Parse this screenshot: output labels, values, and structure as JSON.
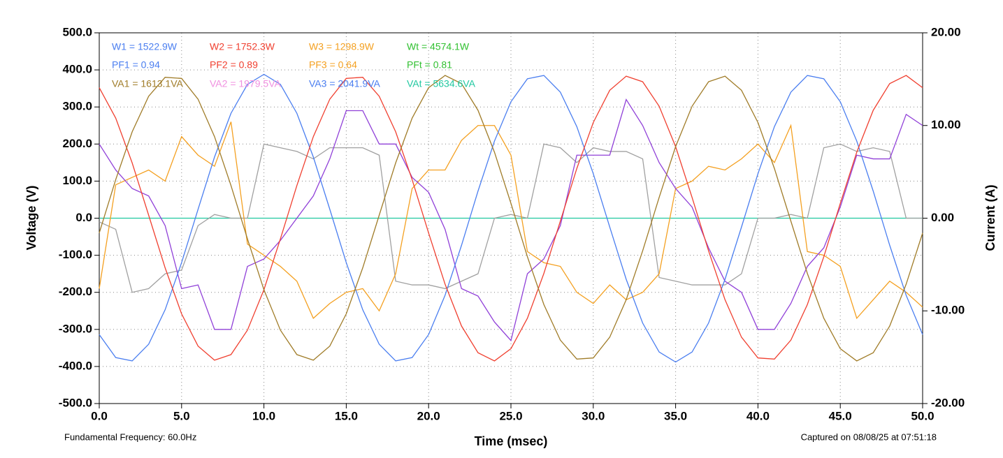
{
  "chart_data": {
    "type": "line",
    "x": [
      0,
      1,
      2,
      3,
      4,
      5,
      6,
      7,
      8,
      9,
      10,
      11,
      12,
      13,
      14,
      15,
      16,
      17,
      18,
      19,
      20,
      21,
      22,
      23,
      24,
      25,
      26,
      27,
      28,
      29,
      30,
      31,
      32,
      33,
      34,
      35,
      36,
      37,
      38,
      39,
      40,
      41,
      42,
      43,
      44,
      45,
      46,
      47,
      48,
      49,
      50
    ],
    "xlim": [
      0,
      50
    ],
    "xticks": [
      {
        "value": 0,
        "label": "0.0"
      },
      {
        "value": 5,
        "label": "5.0"
      },
      {
        "value": 10,
        "label": "10.0"
      },
      {
        "value": 15,
        "label": "15.0"
      },
      {
        "value": 20,
        "label": "20.0"
      },
      {
        "value": 25,
        "label": "25.0"
      },
      {
        "value": 30,
        "label": "30.0"
      },
      {
        "value": 35,
        "label": "35.0"
      },
      {
        "value": 40,
        "label": "40.0"
      },
      {
        "value": 45,
        "label": "45.0"
      },
      {
        "value": 50,
        "label": "50.0"
      }
    ],
    "ylim": [
      -500,
      500
    ],
    "yticks": [
      {
        "value": -500,
        "label": "-500.0"
      },
      {
        "value": -400,
        "label": "-400.0"
      },
      {
        "value": -300,
        "label": "-300.0"
      },
      {
        "value": -200,
        "label": "-200.0"
      },
      {
        "value": -100,
        "label": "-100.0"
      },
      {
        "value": 0,
        "label": "0.0"
      },
      {
        "value": 100,
        "label": "100.0"
      },
      {
        "value": 200,
        "label": "200.0"
      },
      {
        "value": 300,
        "label": "300.0"
      },
      {
        "value": 400,
        "label": "400.0"
      },
      {
        "value": 500,
        "label": "500.0"
      }
    ],
    "y2lim": [
      -20,
      20
    ],
    "y2ticks": [
      {
        "value": -20,
        "label": "-20.00"
      },
      {
        "value": -10,
        "label": "-10.00"
      },
      {
        "value": 0,
        "label": "0.00"
      },
      {
        "value": 10,
        "label": "10.00"
      },
      {
        "value": 20,
        "label": "20.00"
      }
    ],
    "xlabel": "Time (msec)",
    "ylabel": "Voltage (V)",
    "y2label": "Current (A)",
    "grid": true,
    "series": [
      {
        "color": "#20c8a0",
        "axis": "y2",
        "values": [
          0,
          0,
          0,
          0,
          0,
          0,
          0,
          0,
          0,
          0,
          0,
          0,
          0,
          0,
          0,
          0,
          0,
          0,
          0,
          0,
          0,
          0,
          0,
          0,
          0,
          0,
          0,
          0,
          0,
          0,
          0,
          0,
          0,
          0,
          0,
          0,
          0,
          0,
          0,
          0,
          0,
          0,
          0,
          0,
          0,
          0,
          0,
          0,
          0,
          0,
          0
        ]
      },
      {
        "color": "#a0a0a0",
        "axis": "y2",
        "values": [
          -0.4,
          -1.2,
          -8,
          -7.6,
          -6,
          -5.6,
          -0.8,
          0.4,
          0,
          0,
          8,
          7.6,
          7.2,
          6.4,
          7.6,
          7.6,
          7.6,
          6.8,
          -6.8,
          -7.2,
          -7.2,
          -7.6,
          -6.8,
          -6,
          0,
          0.4,
          0,
          8,
          7.6,
          6,
          7.6,
          7.2,
          7.2,
          6.4,
          -6.4,
          -6.8,
          -7.2,
          -7.2,
          -7.2,
          -6,
          0,
          0,
          0.4,
          0,
          7.6,
          8,
          7.2,
          7.6,
          7.2,
          0,
          0
        ]
      },
      {
        "color": "#f4a020",
        "axis": "y2",
        "values": [
          -7.6,
          3.6,
          4.4,
          5.2,
          4,
          8.8,
          6.8,
          5.6,
          10.4,
          -2.8,
          -4,
          -5.2,
          -6.8,
          -10.8,
          -9.2,
          -8,
          -7.6,
          -10,
          -6,
          3.2,
          5.2,
          5.2,
          8.4,
          10,
          10,
          6.8,
          -3.6,
          -4.8,
          -5.2,
          -8,
          -9.2,
          -7.2,
          -8.8,
          -8,
          -6,
          3.2,
          4,
          5.6,
          5.2,
          6.4,
          8,
          6,
          10,
          -3.6,
          -4,
          -5.2,
          -10.8,
          -8.8,
          -6.8,
          -8,
          -9.6
        ]
      },
      {
        "color": "#9040d8",
        "axis": "y2",
        "values": [
          8,
          5.2,
          3.2,
          2.4,
          -0.8,
          -7.6,
          -7.2,
          -12,
          -12,
          -5.2,
          -4.4,
          -2.4,
          0,
          2.4,
          6.4,
          11.6,
          11.6,
          8,
          8,
          4.4,
          2.8,
          -1.2,
          -7.6,
          -8.4,
          -11.2,
          -13.2,
          -6,
          -4.4,
          -0.8,
          6.8,
          6.8,
          6.8,
          12.8,
          10,
          6,
          3.2,
          1.2,
          -3.2,
          -6.8,
          -8,
          -12,
          -12,
          -9.2,
          -5.2,
          -3.2,
          1.2,
          6.8,
          6.4,
          6.4,
          11.2,
          10
        ]
      },
      {
        "color": "#4a7ef0",
        "values": [
          -314,
          -376,
          -385,
          -340,
          -247,
          -120,
          24,
          165,
          283,
          361,
          388,
          361,
          283,
          165,
          24,
          -120,
          -247,
          -340,
          -385,
          -376,
          -314,
          -208,
          -73,
          73,
          208,
          314,
          376,
          385,
          340,
          247,
          120,
          -24,
          -165,
          -283,
          -361,
          -388,
          -361,
          -283,
          -165,
          -24,
          120,
          247,
          340,
          385,
          376,
          314,
          208,
          73,
          -73,
          -208,
          -314
        ]
      },
      {
        "color": "#f04030",
        "values": [
          352,
          270,
          149,
          8,
          -134,
          -258,
          -345,
          -383,
          -368,
          -302,
          -193,
          -56,
          88,
          220,
          321,
          377,
          380,
          329,
          233,
          104,
          -40,
          -178,
          -291,
          -363,
          -385,
          -352,
          -270,
          -149,
          -8,
          134,
          258,
          345,
          383,
          368,
          302,
          193,
          56,
          -88,
          -220,
          -321,
          -377,
          -380,
          -329,
          -233,
          -104,
          40,
          178,
          291,
          363,
          385,
          352
        ]
      },
      {
        "color": "#a07c28",
        "values": [
          -40,
          104,
          233,
          329,
          380,
          377,
          321,
          220,
          88,
          -56,
          -193,
          -302,
          -368,
          -383,
          -345,
          -258,
          -134,
          8,
          149,
          270,
          352,
          385,
          363,
          291,
          178,
          40,
          -104,
          -233,
          -329,
          -380,
          -377,
          -321,
          -220,
          -88,
          56,
          193,
          302,
          368,
          383,
          345,
          258,
          134,
          -8,
          -149,
          -270,
          -352,
          -385,
          -363,
          -291,
          -178,
          -40
        ]
      }
    ],
    "annotations": [
      {
        "text": "W1 = 1522.9W",
        "color": "#4a7ef0"
      },
      {
        "text": "W2 = 1752.3W",
        "color": "#f04030"
      },
      {
        "text": "W3 = 1298.9W",
        "color": "#f4a020"
      },
      {
        "text": "Wt = 4574.1W",
        "color": "#30c030"
      },
      {
        "text": "PF1 = 0.94",
        "color": "#4a7ef0"
      },
      {
        "text": "PF2 = 0.89",
        "color": "#f04030"
      },
      {
        "text": "PF3 = 0.64",
        "color": "#f4a020"
      },
      {
        "text": "PFt = 0.81",
        "color": "#30c030"
      },
      {
        "text": "VA1 = 1613.1VA",
        "color": "#a07c28"
      },
      {
        "text": "VA2 = 1979.5VA",
        "color": "#f090e0"
      },
      {
        "text": "VA3 = 2041.9VA",
        "color": "#4a7ef0"
      },
      {
        "text": "VAt = 5634.6VA",
        "color": "#20c8a0"
      }
    ],
    "footer_left": "Fundamental Frequency: 60.0Hz",
    "footer_right": "Captured on 08/08/25 at 07:51:18"
  }
}
